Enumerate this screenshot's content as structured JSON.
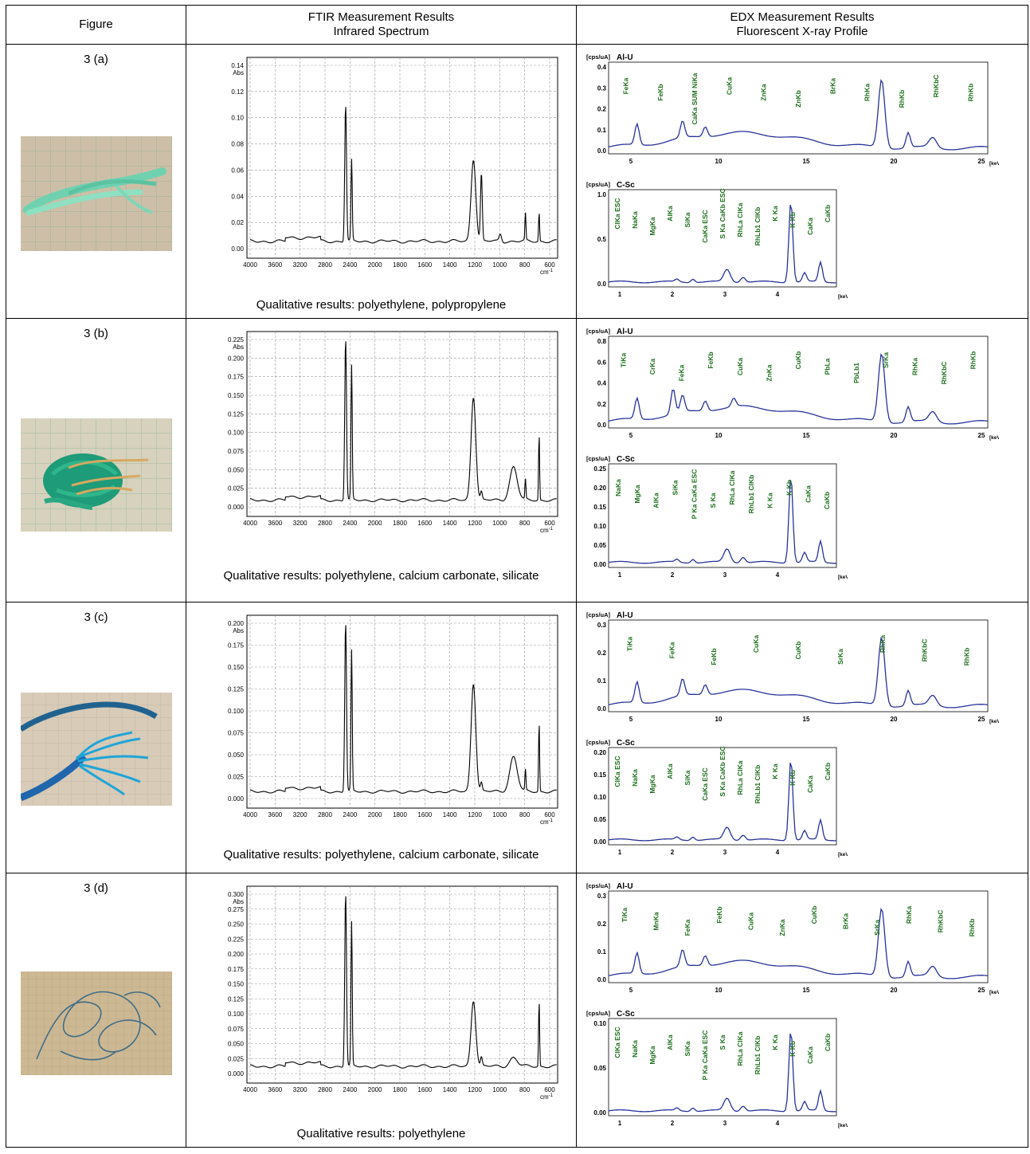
{
  "headers": {
    "figure": "Figure",
    "ftir_line1": "FTIR Measurement Results",
    "ftir_line2": "Infrared Spectrum",
    "edx_line1": "EDX Measurement Results",
    "edx_line2": "Fluorescent X-ray Profile"
  },
  "ftir_axis": {
    "xticks": [
      "4000",
      "3600",
      "3200",
      "2800",
      "2400",
      "2000",
      "1800",
      "1600",
      "1400",
      "1200",
      "1000",
      "800",
      "600"
    ],
    "unit": "cm",
    "unit_exp": "-1",
    "yunit": "Abs"
  },
  "edx_axis": {
    "unit_label": "[cps/uA]",
    "top_title": "Al-U",
    "bot_title": "C-Sc",
    "kev": "[keV]",
    "top_xticks": [
      "5",
      "10",
      "15",
      "20",
      "25"
    ],
    "bot_xticks": [
      "1",
      "2",
      "3",
      "4"
    ]
  },
  "rows": [
    {
      "label": "3 (a)",
      "photo": "green-rope-photo",
      "qual": "Qualitative results: polyethylene, polypropylene",
      "ftir_yticks": [
        "0.00",
        "0.02",
        "0.04",
        "0.06",
        "0.08",
        "0.10",
        "0.12",
        "0.14"
      ],
      "edx_top_yticks": [
        "0.0",
        "0.1",
        "0.2",
        "0.3",
        "0.4"
      ],
      "edx_top_peaks": [
        "FeKa",
        "FeKb",
        "CaKa SUM NiKa",
        "CuKa",
        "ZnKa",
        "ZnKb",
        "BrKa",
        "RhKa",
        "RhKb",
        "RhKbC",
        "RhKb"
      ],
      "edx_bot_yticks": [
        "0.0",
        "0.5",
        "1.0"
      ],
      "edx_bot_peaks": [
        "ClKa ESC",
        "NaKa",
        "MgKa",
        "AlKa",
        "SiKa",
        "CaKa ESC",
        "S Ka CaKb ESC",
        "RhLa ClKa",
        "RhLb1 ClKb",
        "K Ka",
        "K Kb",
        "CaKa",
        "CaKb"
      ]
    },
    {
      "label": "3 (b)",
      "photo": "green-yellow-rope-photo",
      "qual": "Qualitative results: polyethylene, calcium carbonate, silicate",
      "ftir_yticks": [
        "0.000",
        "0.025",
        "0.050",
        "0.075",
        "0.100",
        "0.125",
        "0.150",
        "0.175",
        "0.200",
        "0.225"
      ],
      "edx_top_yticks": [
        "0.0",
        "0.2",
        "0.4",
        "0.6",
        "0.8"
      ],
      "edx_top_peaks": [
        "TiKa",
        "CrKa",
        "FeKa",
        "FeKb",
        "CuKa",
        "ZnKa",
        "CuKb",
        "PbLa",
        "PbLb1",
        "SrKa",
        "RhKa",
        "RhKbC",
        "RhKb"
      ],
      "edx_bot_yticks": [
        "0.00",
        "0.05",
        "0.10",
        "0.15",
        "0.20",
        "0.25"
      ],
      "edx_bot_peaks": [
        "NaKa",
        "MgKa",
        "AlKa",
        "SiKa",
        "P Ka CaKa ESC",
        "S Ka",
        "RhLa ClKa",
        "RhLb1 ClKb",
        "K Ka",
        "K Kb",
        "CaKa",
        "CaKb"
      ]
    },
    {
      "label": "3 (c)",
      "photo": "blue-threads-photo",
      "qual": "Qualitative results: polyethylene, calcium carbonate, silicate",
      "ftir_yticks": [
        "0.000",
        "0.025",
        "0.050",
        "0.075",
        "0.100",
        "0.125",
        "0.150",
        "0.175",
        "0.200"
      ],
      "edx_top_yticks": [
        "0.0",
        "0.1",
        "0.2",
        "0.3"
      ],
      "edx_top_peaks": [
        "TiKa",
        "FeKa",
        "FeKb",
        "CuKa",
        "CuKb",
        "SrKa",
        "RhKa",
        "RhKbC",
        "RhKb"
      ],
      "edx_bot_yticks": [
        "0.00",
        "0.05",
        "0.10",
        "0.15",
        "0.20"
      ],
      "edx_bot_peaks": [
        "ClKa ESC",
        "NaKa",
        "MgKa",
        "AlKa",
        "SiKa",
        "CaKa ESC",
        "S Ka CaKb ESC",
        "RhLa ClKa",
        "RhLb1 ClKb",
        "K Ka",
        "K Kb",
        "CaKa",
        "CaKb"
      ]
    },
    {
      "label": "3 (d)",
      "photo": "blue-line-photo",
      "qual": "Qualitative results: polyethylene",
      "ftir_yticks": [
        "0.000",
        "0.025",
        "0.050",
        "0.075",
        "0.100",
        "0.125",
        "0.150",
        "0.175",
        "0.200",
        "0.225",
        "0.250",
        "0.275",
        "0.300"
      ],
      "edx_top_yticks": [
        "0.0",
        "0.1",
        "0.2",
        "0.3"
      ],
      "edx_top_peaks": [
        "TiKa",
        "MnKa",
        "FeKa",
        "FeKb",
        "CuKa",
        "ZnKa",
        "CuKb",
        "BrKa",
        "SrKa",
        "RhKa",
        "RhKbC",
        "RhKb"
      ],
      "edx_bot_yticks": [
        "0.00",
        "0.05",
        "0.10"
      ],
      "edx_bot_peaks": [
        "ClKa ESC",
        "NaKa",
        "MgKa",
        "AlKa",
        "SiKa",
        "P Ka CaKa ESC",
        "S Ka",
        "RhLa ClKa",
        "RhLb1 ClKb",
        "K Ka",
        "K Kb",
        "CaKa",
        "CaKb"
      ]
    }
  ]
}
